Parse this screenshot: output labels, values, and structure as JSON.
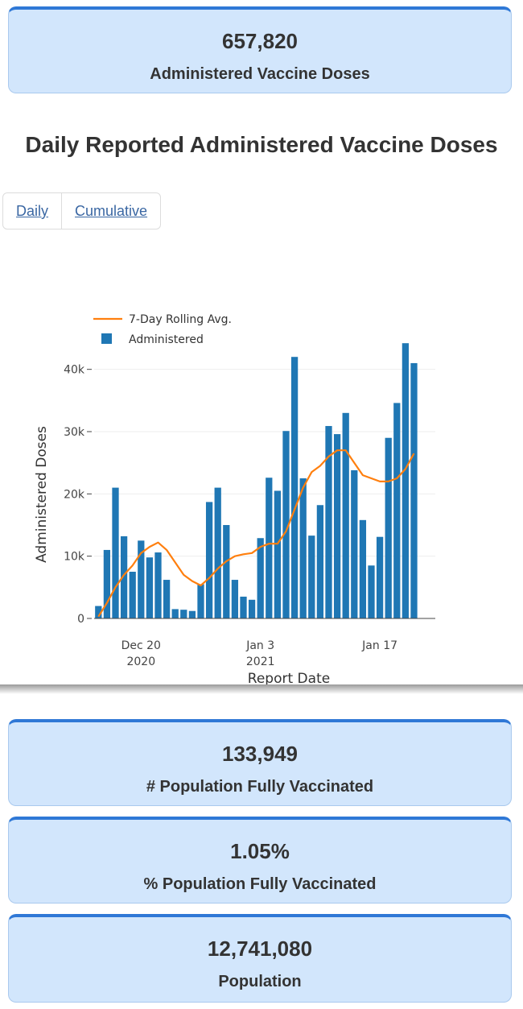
{
  "cards": {
    "doses": {
      "value": "657,820",
      "label": "Administered Vaccine Doses"
    },
    "fully": {
      "value": "133,949",
      "label": "# Population Fully Vaccinated"
    },
    "pct": {
      "value": "1.05%",
      "label": "% Population Fully Vaccinated"
    },
    "population": {
      "value": "12,741,080",
      "label": "Population"
    }
  },
  "section": {
    "title": "Daily Reported Administered Vaccine Doses"
  },
  "tabs": {
    "daily": "Daily",
    "cumulative": "Cumulative"
  },
  "colors": {
    "bar": "#1f77b4",
    "line": "#ff7f0e",
    "card_bg": "#d2e6fc",
    "card_top": "#2f78d6"
  },
  "chart_data": {
    "type": "bar",
    "xlabel": "Report Date",
    "ylabel": "Administered Doses",
    "ylim": [
      0,
      45000
    ],
    "y_ticks": [
      0,
      10000,
      20000,
      30000,
      40000
    ],
    "y_tick_labels": [
      "0",
      "10k",
      "20k",
      "30k",
      "40k"
    ],
    "x_ticks": [
      "2020-12-20",
      "2021-01-03",
      "2021-01-17"
    ],
    "x_tick_labels": [
      [
        "Dec 20",
        "2020"
      ],
      [
        "Jan 3",
        "2021"
      ],
      [
        "Jan 17",
        ""
      ]
    ],
    "legend_position": "top-left",
    "x": [
      "2020-12-15",
      "2020-12-16",
      "2020-12-17",
      "2020-12-18",
      "2020-12-19",
      "2020-12-20",
      "2020-12-21",
      "2020-12-22",
      "2020-12-23",
      "2020-12-24",
      "2020-12-25",
      "2020-12-26",
      "2020-12-27",
      "2020-12-28",
      "2020-12-29",
      "2020-12-30",
      "2020-12-31",
      "2021-01-01",
      "2021-01-02",
      "2021-01-03",
      "2021-01-04",
      "2021-01-05",
      "2021-01-06",
      "2021-01-07",
      "2021-01-08",
      "2021-01-09",
      "2021-01-10",
      "2021-01-11",
      "2021-01-12",
      "2021-01-13",
      "2021-01-14",
      "2021-01-15",
      "2021-01-16",
      "2021-01-17",
      "2021-01-18",
      "2021-01-19",
      "2021-01-20",
      "2021-01-21",
      "2021-01-22",
      "2021-01-23"
    ],
    "series": [
      {
        "name": "Administered",
        "kind": "bar",
        "values": [
          2000,
          11000,
          21000,
          13200,
          7500,
          12500,
          9800,
          10600,
          6200,
          1500,
          1400,
          1200,
          5500,
          18700,
          21000,
          15000,
          6200,
          3500,
          3000,
          12900,
          22600,
          20500,
          30100,
          42000,
          22500,
          13300,
          18200,
          30900,
          29600,
          33000,
          23800,
          15800,
          8500,
          13100,
          29000,
          34600,
          44200,
          41000,
          null,
          null
        ]
      },
      {
        "name": "7-Day Rolling Avg.",
        "kind": "line",
        "values": [
          300,
          2500,
          5000,
          7000,
          8500,
          10500,
          11500,
          12200,
          11000,
          9000,
          7000,
          6000,
          5300,
          6500,
          8000,
          9200,
          10000,
          10300,
          10500,
          11500,
          12000,
          12000,
          14000,
          17500,
          21000,
          23500,
          24500,
          26000,
          27000,
          27000,
          25000,
          23000,
          22500,
          22000,
          22000,
          22500,
          24000,
          26500,
          null,
          null
        ]
      }
    ]
  }
}
